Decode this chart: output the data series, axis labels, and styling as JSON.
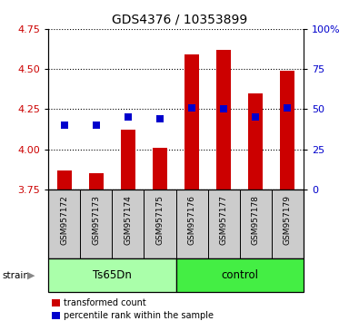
{
  "title": "GDS4376 / 10353899",
  "samples": [
    "GSM957172",
    "GSM957173",
    "GSM957174",
    "GSM957175",
    "GSM957176",
    "GSM957177",
    "GSM957178",
    "GSM957179"
  ],
  "transformed_counts": [
    3.87,
    3.85,
    4.12,
    4.01,
    4.59,
    4.62,
    4.35,
    4.49
  ],
  "percentile_ranks": [
    40,
    40,
    45,
    44,
    51,
    50,
    45,
    51
  ],
  "ylim_left": [
    3.75,
    4.75
  ],
  "ylim_right": [
    0,
    100
  ],
  "yticks_left": [
    3.75,
    4.0,
    4.25,
    4.5,
    4.75
  ],
  "yticks_right": [
    0,
    25,
    50,
    75,
    100
  ],
  "ytick_labels_right": [
    "0",
    "25",
    "50",
    "75",
    "100%"
  ],
  "bar_color": "#cc0000",
  "dot_color": "#0000cc",
  "bar_bottom": 3.75,
  "groups": [
    {
      "label": "Ts65Dn",
      "indices": [
        0,
        1,
        2,
        3
      ],
      "color": "#aaffaa"
    },
    {
      "label": "control",
      "indices": [
        4,
        5,
        6,
        7
      ],
      "color": "#44ee44"
    }
  ],
  "strain_label": "strain",
  "legend_items": [
    {
      "label": "transformed count",
      "color": "#cc0000"
    },
    {
      "label": "percentile rank within the sample",
      "color": "#0000cc"
    }
  ],
  "tick_label_color_left": "#cc0000",
  "tick_label_color_right": "#0000cc",
  "bar_width": 0.45,
  "dot_size": 40,
  "plot_bg": "#ffffff",
  "sample_bg": "#cccccc",
  "title_fontsize": 10,
  "label_fontsize": 6.5
}
